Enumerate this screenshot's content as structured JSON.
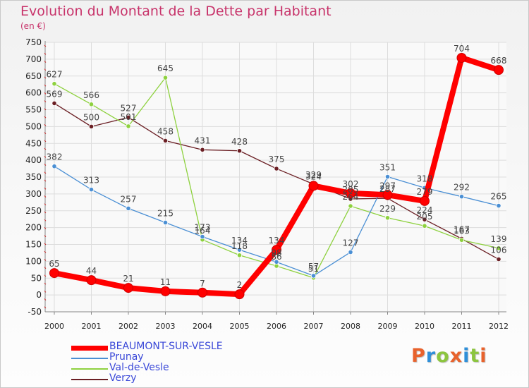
{
  "title": "Evolution du Montant de la Dette par Habitant",
  "unit_label": "(en €)",
  "logo": {
    "text": "Proxiti",
    "letters": [
      {
        "ch": "P",
        "color": "#e8622c"
      },
      {
        "ch": "r",
        "color": "#2f8fd8"
      },
      {
        "ch": "o",
        "color": "#8cc53f"
      },
      {
        "ch": "x",
        "color": "#e8622c"
      },
      {
        "ch": "i",
        "color": "#2f8fd8"
      },
      {
        "ch": "t",
        "color": "#8cc53f"
      },
      {
        "ch": "i",
        "color": "#e8622c"
      }
    ]
  },
  "chart_data": {
    "type": "line",
    "title": "Evolution du Montant de la Dette par Habitant",
    "ylabel": "(en €)",
    "xlabel": "",
    "categories": [
      "2000",
      "2001",
      "2002",
      "2003",
      "2004",
      "2005",
      "2006",
      "2007",
      "2008",
      "2009",
      "2010",
      "2011",
      "2012"
    ],
    "ylim": [
      -50,
      750
    ],
    "yticks": [
      -50,
      0,
      50,
      100,
      150,
      200,
      250,
      300,
      350,
      400,
      450,
      500,
      550,
      600,
      650,
      700,
      750
    ],
    "grid": true,
    "legend_position": "bottom-left",
    "series": [
      {
        "name": "Verzy",
        "color": "#6b1f24",
        "values": [
          569,
          500,
          527,
          458,
          431,
          428,
          375,
          329,
          285,
          287,
          224,
          167,
          106
        ]
      },
      {
        "name": "Val-de-Vesle",
        "color": "#8ed13f",
        "values": [
          627,
          566,
          501,
          645,
          164,
          118,
          86,
          51,
          264,
          229,
          205,
          163,
          139
        ]
      },
      {
        "name": "Prunay",
        "color": "#4a8fd4",
        "values": [
          382,
          313,
          257,
          215,
          173,
          134,
          98,
          57,
          127,
          351,
          318,
          292,
          265
        ]
      },
      {
        "name": "BEAUMONT-SUR-VESLE",
        "color": "#ff0000",
        "bold": true,
        "values": [
          65,
          44,
          21,
          11,
          7,
          2,
          134,
          324,
          302,
          297,
          279,
          704,
          668
        ]
      }
    ],
    "legend": [
      {
        "name": "BEAUMONT-SUR-VESLE",
        "color": "#ff0000",
        "bold": true
      },
      {
        "name": "Prunay",
        "color": "#4a8fd4"
      },
      {
        "name": "Val-de-Vesle",
        "color": "#8ed13f"
      },
      {
        "name": "Verzy",
        "color": "#6b1f24"
      }
    ]
  }
}
